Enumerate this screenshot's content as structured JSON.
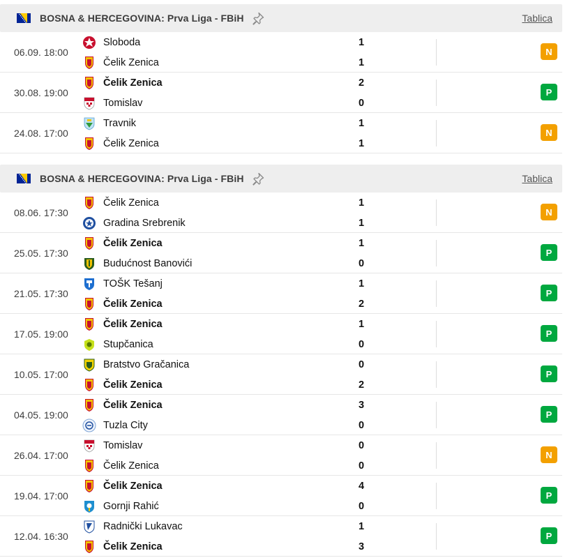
{
  "colors": {
    "draw": "#f3a000",
    "win": "#00a83f",
    "header_bg": "#eeeeee"
  },
  "sections": [
    {
      "title": "BOSNA & HERCEGOVINA: Prva Liga - FBiH",
      "standings_link": "Tablica",
      "flag_icon": "bosnia-flag-icon",
      "matches": [
        {
          "date": "06.09. 18:00",
          "home": {
            "name": "Sloboda",
            "score": "1",
            "bold": false,
            "logo": "sloboda"
          },
          "away": {
            "name": "Čelik Zenica",
            "score": "1",
            "bold": false,
            "logo": "celik"
          },
          "result": "N",
          "result_type": "draw"
        },
        {
          "date": "30.08. 19:00",
          "home": {
            "name": "Čelik Zenica",
            "score": "2",
            "bold": true,
            "logo": "celik"
          },
          "away": {
            "name": "Tomislav",
            "score": "0",
            "bold": false,
            "logo": "tomislav"
          },
          "result": "P",
          "result_type": "win"
        },
        {
          "date": "24.08. 17:00",
          "home": {
            "name": "Travnik",
            "score": "1",
            "bold": false,
            "logo": "travnik"
          },
          "away": {
            "name": "Čelik Zenica",
            "score": "1",
            "bold": false,
            "logo": "celik"
          },
          "result": "N",
          "result_type": "draw"
        }
      ]
    },
    {
      "title": "BOSNA & HERCEGOVINA: Prva Liga - FBiH",
      "standings_link": "Tablica",
      "flag_icon": "bosnia-flag-icon",
      "matches": [
        {
          "date": "08.06. 17:30",
          "home": {
            "name": "Čelik Zenica",
            "score": "1",
            "bold": false,
            "logo": "celik"
          },
          "away": {
            "name": "Gradina Srebrenik",
            "score": "1",
            "bold": false,
            "logo": "gradina"
          },
          "result": "N",
          "result_type": "draw"
        },
        {
          "date": "25.05. 17:30",
          "home": {
            "name": "Čelik Zenica",
            "score": "1",
            "bold": true,
            "logo": "celik"
          },
          "away": {
            "name": "Budućnost Banovići",
            "score": "0",
            "bold": false,
            "logo": "buducnost"
          },
          "result": "P",
          "result_type": "win"
        },
        {
          "date": "21.05. 17:30",
          "home": {
            "name": "TOŠK Tešanj",
            "score": "1",
            "bold": false,
            "logo": "tosk"
          },
          "away": {
            "name": "Čelik Zenica",
            "score": "2",
            "bold": true,
            "logo": "celik"
          },
          "result": "P",
          "result_type": "win"
        },
        {
          "date": "17.05. 19:00",
          "home": {
            "name": "Čelik Zenica",
            "score": "1",
            "bold": true,
            "logo": "celik"
          },
          "away": {
            "name": "Stupčanica",
            "score": "0",
            "bold": false,
            "logo": "stupcanica"
          },
          "result": "P",
          "result_type": "win"
        },
        {
          "date": "10.05. 17:00",
          "home": {
            "name": "Bratstvo Gračanica",
            "score": "0",
            "bold": false,
            "logo": "bratstvo"
          },
          "away": {
            "name": "Čelik Zenica",
            "score": "2",
            "bold": true,
            "logo": "celik"
          },
          "result": "P",
          "result_type": "win"
        },
        {
          "date": "04.05. 19:00",
          "home": {
            "name": "Čelik Zenica",
            "score": "3",
            "bold": true,
            "logo": "celik"
          },
          "away": {
            "name": "Tuzla City",
            "score": "0",
            "bold": false,
            "logo": "tuzla"
          },
          "result": "P",
          "result_type": "win"
        },
        {
          "date": "26.04. 17:00",
          "home": {
            "name": "Tomislav",
            "score": "0",
            "bold": false,
            "logo": "tomislav"
          },
          "away": {
            "name": "Čelik Zenica",
            "score": "0",
            "bold": false,
            "logo": "celik"
          },
          "result": "N",
          "result_type": "draw"
        },
        {
          "date": "19.04. 17:00",
          "home": {
            "name": "Čelik Zenica",
            "score": "4",
            "bold": true,
            "logo": "celik"
          },
          "away": {
            "name": "Gornji Rahić",
            "score": "0",
            "bold": false,
            "logo": "gornji"
          },
          "result": "P",
          "result_type": "win"
        },
        {
          "date": "12.04. 16:30",
          "home": {
            "name": "Radnički Lukavac",
            "score": "1",
            "bold": false,
            "logo": "radnicki"
          },
          "away": {
            "name": "Čelik Zenica",
            "score": "3",
            "bold": true,
            "logo": "celik"
          },
          "result": "P",
          "result_type": "win"
        }
      ]
    }
  ]
}
